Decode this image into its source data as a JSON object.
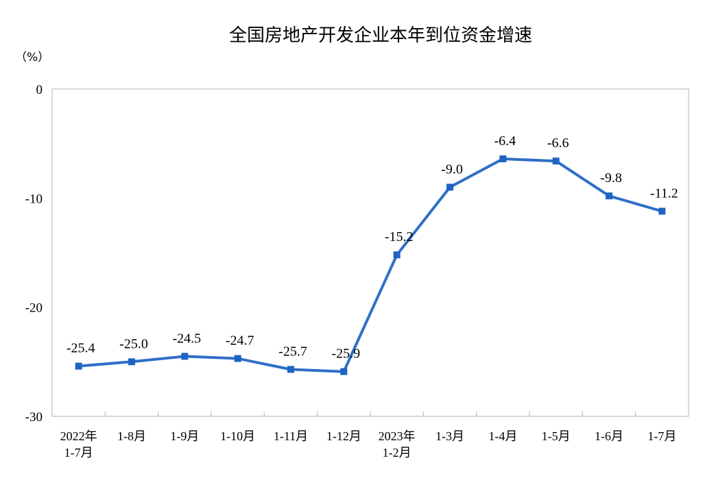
{
  "chart_data": {
    "type": "line",
    "title": "全国房地产开发企业本年到位资金增速",
    "unit": "（%）",
    "ylim": [
      -30,
      0
    ],
    "yticks": [
      "0",
      "-10",
      "-20",
      "-30"
    ],
    "ytick_values": [
      0,
      -10,
      -20,
      -30
    ],
    "categories": [
      [
        "2022年",
        "1-7月"
      ],
      [
        "1-8月"
      ],
      [
        "1-9月"
      ],
      [
        "1-10月"
      ],
      [
        "1-11月"
      ],
      [
        "1-12月"
      ],
      [
        "2023年",
        "1-2月"
      ],
      [
        "1-3月"
      ],
      [
        "1-4月"
      ],
      [
        "1-5月"
      ],
      [
        "1-6月"
      ],
      [
        "1-7月"
      ]
    ],
    "series": [
      {
        "values": [
          -25.4,
          -25.0,
          -24.5,
          -24.7,
          -25.7,
          -25.9,
          -15.2,
          -9.0,
          -6.4,
          -6.6,
          -9.8,
          -11.2
        ],
        "labels": [
          "-25.4",
          "-25.0",
          "-24.5",
          "-24.7",
          "-25.7",
          "-25.9",
          "-15.2",
          "-9.0",
          "-6.4",
          "-6.6",
          "-9.8",
          "-11.2"
        ]
      }
    ],
    "line_color": "#2e6fc7",
    "marker_color": "#1f63c4",
    "axis_color": "#bfbfbf",
    "grid": false,
    "legend": "none"
  }
}
